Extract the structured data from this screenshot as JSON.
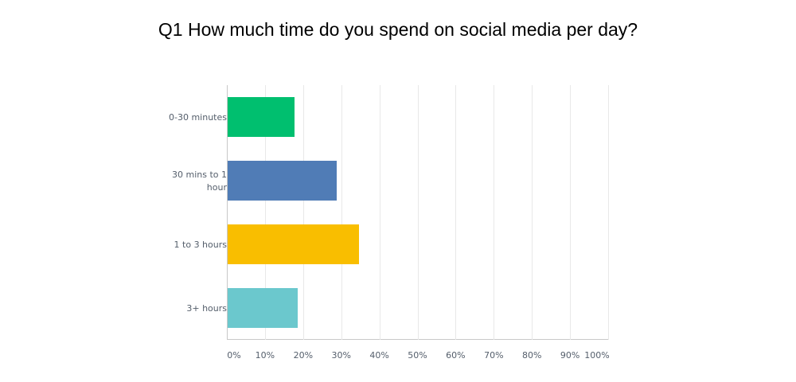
{
  "chart_data": {
    "type": "bar",
    "orientation": "horizontal",
    "title": "Q1 How much time do you spend on social media per day?",
    "categories": [
      "0-30 minutes",
      "30 mins to 1 hour",
      "1 to 3 hours",
      "3+ hours"
    ],
    "category_lines": [
      [
        "0-30 minutes"
      ],
      [
        "30 mins to 1",
        "hour"
      ],
      [
        "1 to 3 hours"
      ],
      [
        "3+ hours"
      ]
    ],
    "values": [
      17.6,
      28.7,
      34.4,
      18.4
    ],
    "colors": [
      "#00bf6f",
      "#507cb6",
      "#f9be00",
      "#6bc8cd"
    ],
    "xlabel": "",
    "ylabel": "",
    "xlim": [
      0,
      100
    ],
    "x_ticks": [
      "0%",
      "10%",
      "20%",
      "30%",
      "40%",
      "50%",
      "60%",
      "70%",
      "80%",
      "90%",
      "100%"
    ],
    "grid": true,
    "legend": "none"
  }
}
